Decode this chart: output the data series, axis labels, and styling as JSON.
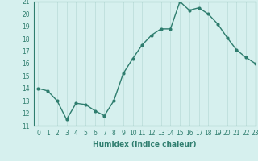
{
  "x": [
    0,
    1,
    2,
    3,
    4,
    5,
    6,
    7,
    8,
    9,
    10,
    11,
    12,
    13,
    14,
    15,
    16,
    17,
    18,
    19,
    20,
    21,
    22,
    23
  ],
  "y": [
    14.0,
    13.8,
    13.0,
    11.5,
    12.8,
    12.7,
    12.2,
    11.8,
    13.0,
    15.2,
    16.4,
    17.5,
    18.3,
    18.8,
    18.8,
    21.0,
    20.3,
    20.5,
    20.0,
    19.2,
    18.1,
    17.1,
    16.5,
    16.0
  ],
  "line_color": "#2e7d6e",
  "bg_color": "#d6f0ee",
  "grid_color": "#b8dbd8",
  "xlabel": "Humidex (Indice chaleur)",
  "ylim": [
    11,
    21
  ],
  "xlim": [
    -0.5,
    23
  ],
  "yticks": [
    11,
    12,
    13,
    14,
    15,
    16,
    17,
    18,
    19,
    20,
    21
  ],
  "xticks": [
    0,
    1,
    2,
    3,
    4,
    5,
    6,
    7,
    8,
    9,
    10,
    11,
    12,
    13,
    14,
    15,
    16,
    17,
    18,
    19,
    20,
    21,
    22,
    23
  ],
  "xlabel_fontsize": 6.5,
  "tick_fontsize": 5.5,
  "marker": "o",
  "markersize": 2.0,
  "linewidth": 1.0
}
